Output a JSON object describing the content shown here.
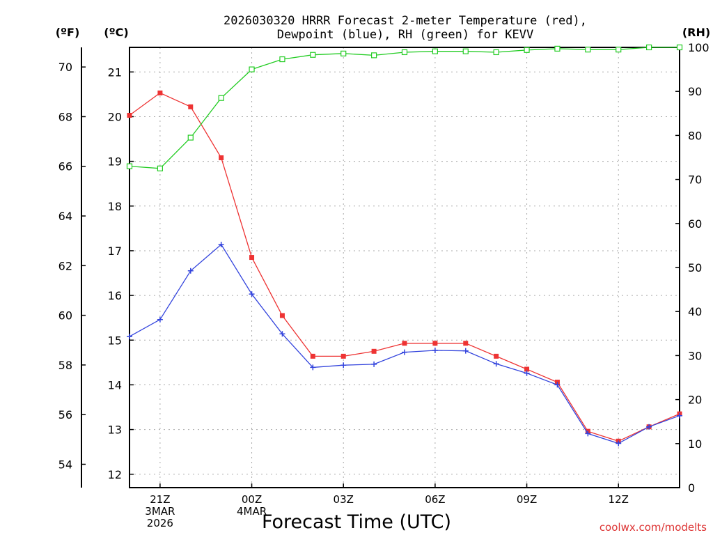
{
  "chart_data": {
    "type": "line",
    "title": [
      "2026030320 HRRR Forecast 2-meter Temperature (red),",
      "Dewpoint (blue), RH (green) for KEVV"
    ],
    "xlabel": "Forecast Time (UTC)",
    "credit": "coolwx.com/modelts",
    "axis_labels": {
      "fahrenheit": "(ºF)",
      "celsius": "(ºC)",
      "rh": "(RH)"
    },
    "x_hours": [
      0,
      1,
      2,
      3,
      4,
      5,
      6,
      7,
      8,
      9,
      10,
      11,
      12,
      13,
      14,
      15,
      16,
      17,
      18
    ],
    "x_ticks": [
      {
        "hour": 1,
        "lines": [
          "21Z",
          "3MAR",
          "2026"
        ]
      },
      {
        "hour": 4,
        "lines": [
          "00Z",
          "4MAR"
        ]
      },
      {
        "hour": 7,
        "lines": [
          "03Z"
        ]
      },
      {
        "hour": 10,
        "lines": [
          "06Z"
        ]
      },
      {
        "hour": 13,
        "lines": [
          "09Z"
        ]
      },
      {
        "hour": 16,
        "lines": [
          "12Z"
        ]
      }
    ],
    "celsius_range": [
      11.7,
      21.55
    ],
    "celsius_ticks": [
      12,
      13,
      14,
      15,
      16,
      17,
      18,
      19,
      20,
      21
    ],
    "fahrenheit_ticks": [
      54,
      56,
      58,
      60,
      62,
      64,
      66,
      68,
      70
    ],
    "rh_range": [
      0,
      100
    ],
    "rh_ticks": [
      0,
      10,
      20,
      30,
      40,
      50,
      60,
      70,
      80,
      90,
      100
    ],
    "series": [
      {
        "name": "Temperature",
        "unit": "C",
        "color": "#ee3333",
        "marker": "filled-square",
        "values": [
          20.03,
          20.53,
          20.22,
          19.08,
          16.85,
          15.55,
          14.64,
          14.64,
          14.75,
          14.93,
          14.93,
          14.93,
          14.64,
          14.35,
          14.06,
          12.96,
          12.74,
          13.06,
          13.35
        ]
      },
      {
        "name": "Dewpoint",
        "unit": "C",
        "color": "#3344dd",
        "marker": "plus",
        "values": [
          15.08,
          15.46,
          16.55,
          17.14,
          16.03,
          15.14,
          14.39,
          14.44,
          14.46,
          14.73,
          14.77,
          14.76,
          14.47,
          14.26,
          14.0,
          12.91,
          12.69,
          13.06,
          13.31
        ]
      },
      {
        "name": "RH",
        "unit": "%",
        "color": "#22cc22",
        "marker": "open-square",
        "values": [
          73,
          72.5,
          79.5,
          88.5,
          95,
          97.3,
          98.3,
          98.6,
          98.2,
          98.9,
          99.1,
          99.1,
          98.9,
          99.4,
          99.7,
          99.5,
          99.5,
          100,
          100
        ]
      }
    ]
  }
}
